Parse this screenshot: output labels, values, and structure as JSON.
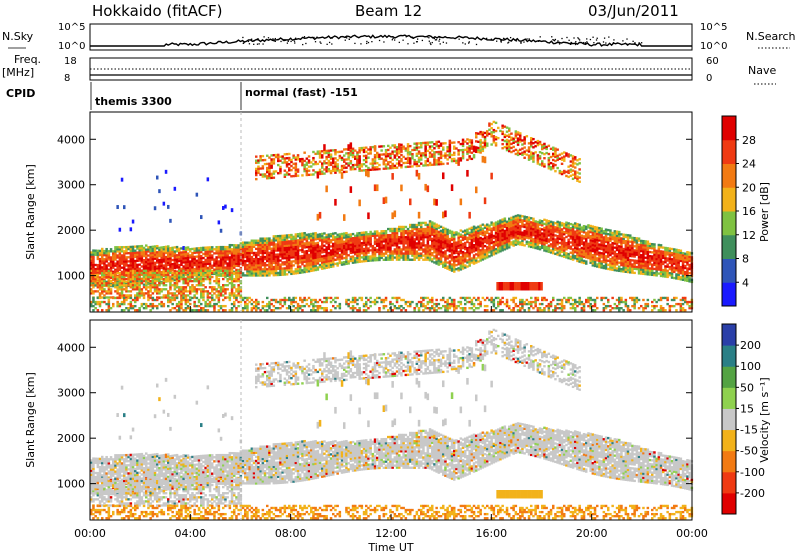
{
  "header": {
    "station": "Hokkaido (fitACF)",
    "beam": "Beam 12",
    "date": "03/Jun/2011"
  },
  "top_panels": {
    "nsky_label": "N.Sky",
    "nsearch_label": "N.Search",
    "noise_ticks": [
      "10^5",
      "10^0"
    ],
    "freq_label": "Freq.",
    "freq_unit": "[MHz]",
    "freq_ticks": [
      "18",
      "8"
    ],
    "nave_label": "Nave",
    "nave_ticks": [
      "60",
      "0"
    ],
    "cpid_label": "CPID",
    "cpid_segments": [
      {
        "name": "themis 3300",
        "start_hour": 0
      },
      {
        "name": "normal (fast) -151",
        "start_hour": 6
      }
    ]
  },
  "chart_data": [
    {
      "type": "heatmap",
      "title": "",
      "xlabel": "",
      "ylabel": "Slant Range [km]",
      "xlim": [
        0,
        24
      ],
      "ylim": [
        200,
        4600
      ],
      "yticks": [
        1000,
        2000,
        3000,
        4000
      ],
      "colorbar": {
        "label": "Power [dB]",
        "ticks": [
          4,
          8,
          12,
          16,
          20,
          24,
          28
        ],
        "range": [
          0,
          32
        ],
        "colors": [
          "#1a1aff",
          "#2f55b8",
          "#3f8f5c",
          "#7fc241",
          "#f2b21a",
          "#f27a12",
          "#ef3a12",
          "#e00000"
        ]
      },
      "echo_regions": [
        {
          "feature": "main band",
          "range_km": [
            900,
            2100
          ],
          "hours": [
            0,
            24
          ],
          "dominant_value": 28
        },
        {
          "feature": "upper band",
          "range_km": [
            2900,
            4400
          ],
          "hours": [
            6,
            20
          ],
          "dominant_value": 24
        },
        {
          "feature": "ground scatter",
          "range_km": [
            200,
            500
          ],
          "hours": [
            0,
            24
          ],
          "dominant_value": 20
        }
      ]
    },
    {
      "type": "heatmap",
      "title": "",
      "xlabel": "Time UT",
      "ylabel": "Slant Range [km]",
      "xlim": [
        0,
        24
      ],
      "ylim": [
        200,
        4600
      ],
      "yticks": [
        1000,
        2000,
        3000,
        4000
      ],
      "xticks": [
        "00:00",
        "04:00",
        "08:00",
        "12:00",
        "16:00",
        "20:00",
        "00:00"
      ],
      "colorbar": {
        "label": "Velocity [m s⁻¹]",
        "ticks": [
          200,
          100,
          50,
          15,
          -15,
          -50,
          -100,
          -200
        ],
        "range": [
          -250,
          250
        ],
        "colors": [
          "#2a3fa8",
          "#2a7f86",
          "#54a343",
          "#8fd14f",
          "#c8c8c8",
          "#f2b21a",
          "#f27a12",
          "#ef3a12",
          "#e00000"
        ]
      },
      "echo_regions": [
        {
          "feature": "main band",
          "range_km": [
            900,
            2100
          ],
          "hours": [
            0,
            24
          ],
          "dominant_value": 0
        },
        {
          "feature": "upper band",
          "range_km": [
            2900,
            4400
          ],
          "hours": [
            6,
            20
          ],
          "dominant_value": 0
        },
        {
          "feature": "ground scatter",
          "range_km": [
            200,
            500
          ],
          "hours": [
            0,
            24
          ],
          "dominant_value": -30
        }
      ]
    }
  ]
}
